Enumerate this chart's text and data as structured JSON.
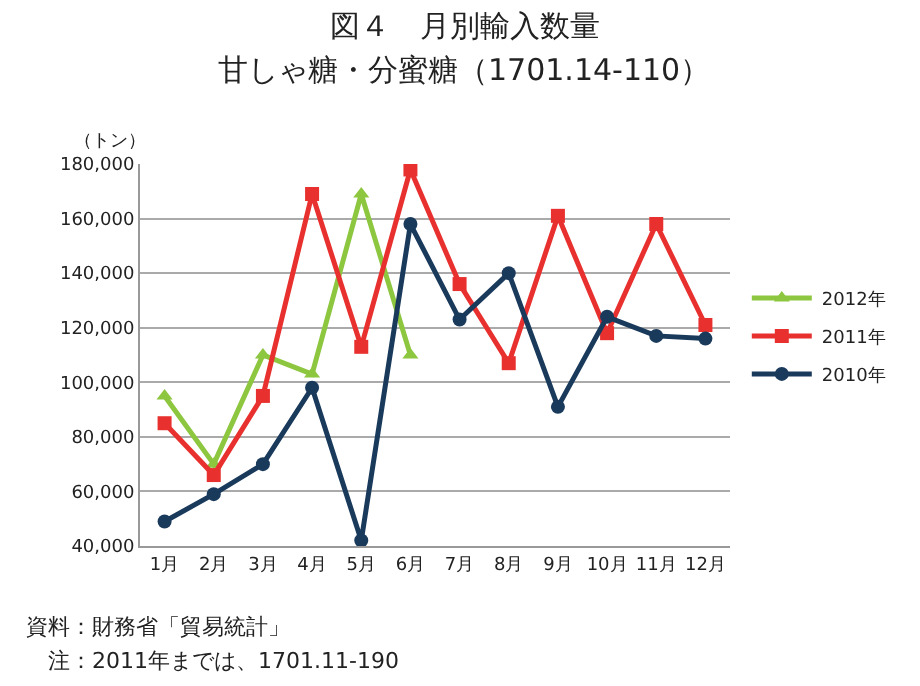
{
  "chart_data": {
    "type": "line",
    "title": "図４　月別輸入数量",
    "subtitle": "甘しゃ糖・分蜜糖（1701.14-110）",
    "ylabel": "（トン）",
    "categories": [
      "1月",
      "2月",
      "3月",
      "4月",
      "5月",
      "6月",
      "7月",
      "8月",
      "9月",
      "10月",
      "11月",
      "12月"
    ],
    "series": [
      {
        "name": "2012年",
        "color": "#8dc63f",
        "marker": "triangle",
        "values": [
          95000,
          70000,
          110000,
          103000,
          169000,
          110000,
          null,
          null,
          null,
          null,
          null,
          null
        ]
      },
      {
        "name": "2011年",
        "color": "#e8312f",
        "marker": "square",
        "values": [
          85000,
          66000,
          95000,
          169000,
          113000,
          178000,
          136000,
          107000,
          161000,
          118000,
          158000,
          121000
        ]
      },
      {
        "name": "2010年",
        "color": "#1a3a5c",
        "marker": "circle",
        "values": [
          49000,
          59000,
          70000,
          98000,
          42000,
          158000,
          123000,
          140000,
          91000,
          124000,
          117000,
          116000
        ]
      }
    ],
    "ylim": [
      40000,
      180000
    ],
    "yticks": [
      {
        "value": 40000,
        "label": "40,000"
      },
      {
        "value": 60000,
        "label": "60,000"
      },
      {
        "value": 80000,
        "label": "80,000"
      },
      {
        "value": 100000,
        "label": "100,000"
      },
      {
        "value": 120000,
        "label": "120,000"
      },
      {
        "value": 140000,
        "label": "140,000"
      },
      {
        "value": 160000,
        "label": "160,000"
      },
      {
        "value": 180000,
        "label": "180,000"
      }
    ],
    "grid": "y",
    "legend": "right",
    "annotations": [
      "資料：財務省「貿易統計」",
      "　注：2011年までは、1701.11-190"
    ]
  }
}
